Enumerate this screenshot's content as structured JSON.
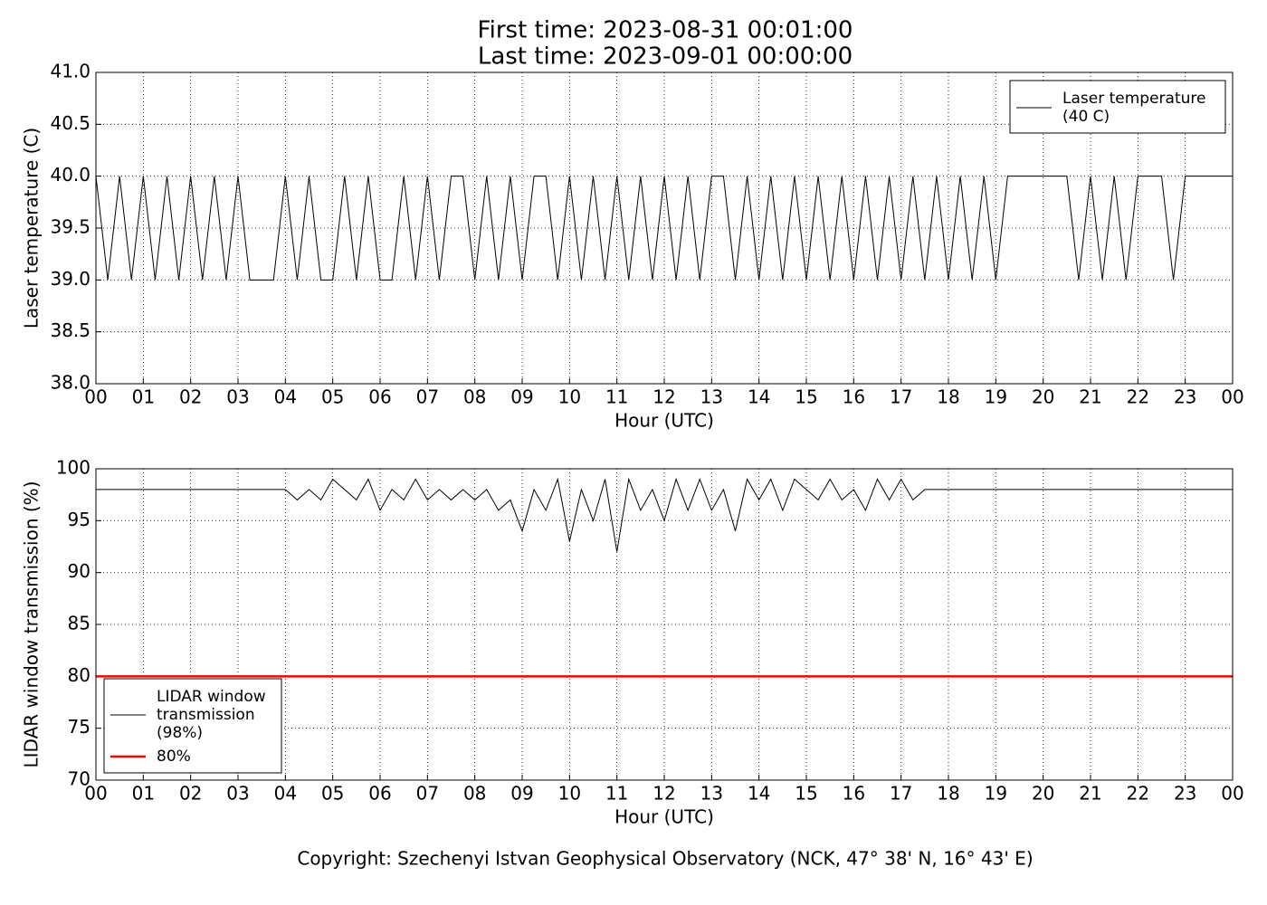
{
  "chart_data": [
    {
      "type": "line",
      "title": "First time: 2023-08-31 00:01:00",
      "subtitle": "Last time: 2023-09-01 00:00:00",
      "xlabel": "Hour (UTC)",
      "ylabel": "Laser temperature (C)",
      "xlim": [
        0,
        24
      ],
      "ylim": [
        38,
        41
      ],
      "xticks": [
        {
          "value": 0,
          "label": "00"
        },
        {
          "value": 1,
          "label": "01"
        },
        {
          "value": 2,
          "label": "02"
        },
        {
          "value": 3,
          "label": "03"
        },
        {
          "value": 4,
          "label": "04"
        },
        {
          "value": 5,
          "label": "05"
        },
        {
          "value": 6,
          "label": "06"
        },
        {
          "value": 7,
          "label": "07"
        },
        {
          "value": 8,
          "label": "08"
        },
        {
          "value": 9,
          "label": "09"
        },
        {
          "value": 10,
          "label": "10"
        },
        {
          "value": 11,
          "label": "11"
        },
        {
          "value": 12,
          "label": "12"
        },
        {
          "value": 13,
          "label": "13"
        },
        {
          "value": 14,
          "label": "14"
        },
        {
          "value": 15,
          "label": "15"
        },
        {
          "value": 16,
          "label": "16"
        },
        {
          "value": 17,
          "label": "17"
        },
        {
          "value": 18,
          "label": "18"
        },
        {
          "value": 19,
          "label": "19"
        },
        {
          "value": 20,
          "label": "20"
        },
        {
          "value": 21,
          "label": "21"
        },
        {
          "value": 22,
          "label": "22"
        },
        {
          "value": 23,
          "label": "23"
        },
        {
          "value": 24,
          "label": "00"
        }
      ],
      "yticks": [
        {
          "value": 38,
          "label": "38.0"
        },
        38.5,
        {
          "value": 39,
          "label": "39.0"
        },
        39.5,
        {
          "value": 40,
          "label": "40.0"
        },
        40.5,
        {
          "value": 41,
          "label": "41.0"
        }
      ],
      "grid": true,
      "legend": "upper right",
      "series": [
        {
          "name": "Laser temperature\n(40 C)",
          "color": "#000000",
          "linewidth": 1,
          "x": [
            0,
            0.25,
            0.5,
            0.75,
            1,
            1.25,
            1.5,
            1.75,
            2,
            2.25,
            2.5,
            2.75,
            3,
            3.25,
            3.5,
            3.75,
            4,
            4.25,
            4.5,
            4.75,
            5,
            5.25,
            5.5,
            5.75,
            6,
            6.25,
            6.5,
            6.75,
            7,
            7.25,
            7.5,
            7.75,
            8,
            8.25,
            8.5,
            8.75,
            9,
            9.25,
            9.5,
            9.75,
            10,
            10.25,
            10.5,
            10.75,
            11,
            11.25,
            11.5,
            11.75,
            12,
            12.25,
            12.5,
            12.75,
            13,
            13.25,
            13.5,
            13.75,
            14,
            14.25,
            14.5,
            14.75,
            15,
            15.25,
            15.5,
            15.75,
            16,
            16.25,
            16.5,
            16.75,
            17,
            17.25,
            17.5,
            17.75,
            18,
            18.25,
            18.5,
            18.75,
            19,
            19.25,
            19.5,
            19.75,
            20,
            20.25,
            20.5,
            20.75,
            21,
            21.25,
            21.5,
            21.75,
            22,
            22.25,
            22.5,
            22.75,
            23,
            23.25,
            23.5,
            23.75,
            24
          ],
          "values": [
            40,
            39,
            40,
            39,
            40,
            39,
            40,
            39,
            40,
            39,
            40,
            39,
            40,
            39,
            39,
            39,
            40,
            39,
            40,
            39,
            39,
            40,
            39,
            40,
            39,
            39,
            40,
            39,
            40,
            39,
            40,
            40,
            39,
            40,
            39,
            40,
            39,
            40,
            40,
            39,
            40,
            39,
            40,
            39,
            40,
            39,
            40,
            39,
            40,
            39,
            40,
            39,
            40,
            40,
            39,
            40,
            39,
            40,
            39,
            40,
            39,
            40,
            39,
            40,
            39,
            40,
            39,
            40,
            39,
            40,
            39,
            40,
            39,
            40,
            39,
            40,
            39,
            40,
            40,
            40,
            40,
            40,
            40,
            39,
            40,
            39,
            40,
            39,
            40,
            40,
            40,
            39,
            40,
            40,
            40,
            40,
            40
          ]
        }
      ]
    },
    {
      "type": "line",
      "xlabel": "Hour (UTC)",
      "ylabel": "LIDAR window transmission (%)",
      "footnote": "Copyright: Szechenyi Istvan Geophysical Observatory (NCK, 47° 38' N, 16° 43' E)",
      "xlim": [
        0,
        24
      ],
      "ylim": [
        70,
        100
      ],
      "xticks": [
        {
          "value": 0,
          "label": "00"
        },
        {
          "value": 1,
          "label": "01"
        },
        {
          "value": 2,
          "label": "02"
        },
        {
          "value": 3,
          "label": "03"
        },
        {
          "value": 4,
          "label": "04"
        },
        {
          "value": 5,
          "label": "05"
        },
        {
          "value": 6,
          "label": "06"
        },
        {
          "value": 7,
          "label": "07"
        },
        {
          "value": 8,
          "label": "08"
        },
        {
          "value": 9,
          "label": "09"
        },
        {
          "value": 10,
          "label": "10"
        },
        {
          "value": 11,
          "label": "11"
        },
        {
          "value": 12,
          "label": "12"
        },
        {
          "value": 13,
          "label": "13"
        },
        {
          "value": 14,
          "label": "14"
        },
        {
          "value": 15,
          "label": "15"
        },
        {
          "value": 16,
          "label": "16"
        },
        {
          "value": 17,
          "label": "17"
        },
        {
          "value": 18,
          "label": "18"
        },
        {
          "value": 19,
          "label": "19"
        },
        {
          "value": 20,
          "label": "20"
        },
        {
          "value": 21,
          "label": "21"
        },
        {
          "value": 22,
          "label": "22"
        },
        {
          "value": 23,
          "label": "23"
        },
        {
          "value": 24,
          "label": "00"
        }
      ],
      "yticks": [
        70,
        75,
        80,
        85,
        90,
        95,
        100
      ],
      "grid": true,
      "legend": "lower left",
      "series": [
        {
          "name": "LIDAR window\ntransmission\n(98%)",
          "color": "#000000",
          "linewidth": 1,
          "x": [
            0,
            4,
            4.25,
            4.5,
            4.75,
            5,
            5.25,
            5.5,
            5.75,
            6,
            6.25,
            6.5,
            6.75,
            7,
            7.25,
            7.5,
            7.75,
            8,
            8.25,
            8.5,
            8.75,
            9,
            9.25,
            9.5,
            9.75,
            10,
            10.25,
            10.5,
            10.75,
            11,
            11.25,
            11.5,
            11.75,
            12,
            12.25,
            12.5,
            12.75,
            13,
            13.25,
            13.5,
            13.75,
            14,
            14.25,
            14.5,
            14.75,
            15,
            15.25,
            15.5,
            15.75,
            16,
            16.25,
            16.5,
            16.75,
            17,
            17.25,
            17.5,
            24
          ],
          "values": [
            98,
            98,
            97,
            98,
            97,
            99,
            98,
            97,
            99,
            96,
            98,
            97,
            99,
            97,
            98,
            97,
            98,
            97,
            98,
            96,
            97,
            94,
            98,
            96,
            99,
            93,
            98,
            95,
            99,
            92,
            99,
            96,
            98,
            95,
            99,
            96,
            99,
            96,
            98,
            94,
            99,
            97,
            99,
            96,
            99,
            98,
            97,
            99,
            97,
            98,
            96,
            99,
            97,
            99,
            97,
            98,
            98
          ]
        },
        {
          "name": "80%",
          "color": "#ff0000",
          "linewidth": 2.5,
          "x": [
            0,
            24
          ],
          "values": [
            80,
            80
          ]
        }
      ]
    }
  ]
}
